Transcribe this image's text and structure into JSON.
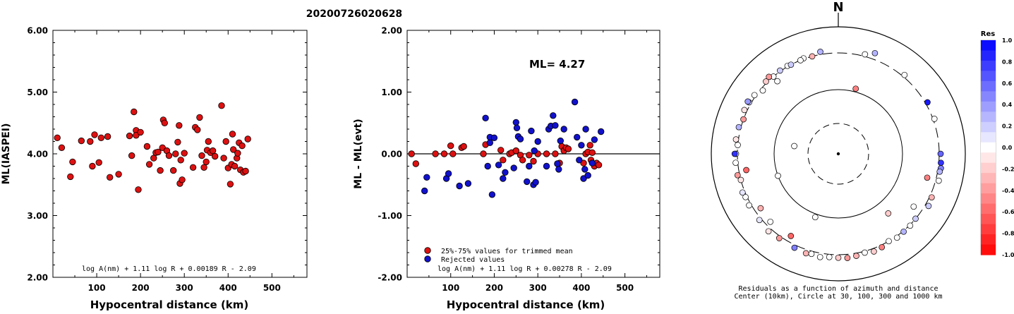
{
  "title": "20200726020628",
  "chart_data": [
    {
      "type": "scatter",
      "xlabel": "Hypocentral distance (km)",
      "ylabel": "ML(IASPEI)",
      "xlim": [
        0,
        580
      ],
      "ylim": [
        2.0,
        6.0
      ],
      "xticks": [
        "100",
        "200",
        "300",
        "400",
        "500"
      ],
      "yticks": [
        "2.00",
        "3.00",
        "4.00",
        "5.00",
        "6.00"
      ],
      "formula": "log A(nm) + 1.11 log R + 0.00189 R - 2.09",
      "point_color": "#dd1111",
      "points": [
        [
          10,
          4.26
        ],
        [
          20,
          4.1
        ],
        [
          40,
          3.63
        ],
        [
          45,
          3.87
        ],
        [
          65,
          4.21
        ],
        [
          85,
          4.2
        ],
        [
          90,
          3.8
        ],
        [
          95,
          4.31
        ],
        [
          105,
          3.86
        ],
        [
          110,
          4.26
        ],
        [
          125,
          4.28
        ],
        [
          130,
          3.62
        ],
        [
          150,
          3.67
        ],
        [
          175,
          4.29
        ],
        [
          180,
          3.97
        ],
        [
          185,
          4.68
        ],
        [
          190,
          4.38
        ],
        [
          190,
          4.3
        ],
        [
          195,
          3.42
        ],
        [
          200,
          4.35
        ],
        [
          215,
          4.12
        ],
        [
          220,
          3.83
        ],
        [
          230,
          3.93
        ],
        [
          235,
          4.02
        ],
        [
          240,
          4.03
        ],
        [
          245,
          3.73
        ],
        [
          250,
          4.1
        ],
        [
          252,
          4.55
        ],
        [
          255,
          4.5
        ],
        [
          260,
          4.05
        ],
        [
          265,
          3.97
        ],
        [
          275,
          3.73
        ],
        [
          280,
          4.0
        ],
        [
          285,
          4.19
        ],
        [
          288,
          4.46
        ],
        [
          290,
          3.52
        ],
        [
          292,
          3.9
        ],
        [
          295,
          3.58
        ],
        [
          300,
          4.01
        ],
        [
          320,
          3.78
        ],
        [
          325,
          4.43
        ],
        [
          330,
          4.39
        ],
        [
          335,
          4.59
        ],
        [
          340,
          3.97
        ],
        [
          345,
          3.78
        ],
        [
          350,
          3.87
        ],
        [
          352,
          4.06
        ],
        [
          355,
          4.2
        ],
        [
          360,
          4.02
        ],
        [
          365,
          4.05
        ],
        [
          370,
          3.96
        ],
        [
          385,
          4.78
        ],
        [
          390,
          3.93
        ],
        [
          395,
          4.2
        ],
        [
          400,
          3.77
        ],
        [
          405,
          3.51
        ],
        [
          408,
          3.83
        ],
        [
          410,
          4.32
        ],
        [
          412,
          4.07
        ],
        [
          415,
          3.8
        ],
        [
          420,
          3.93
        ],
        [
          422,
          4.01
        ],
        [
          425,
          4.18
        ],
        [
          428,
          3.74
        ],
        [
          432,
          4.13
        ],
        [
          435,
          3.7
        ],
        [
          440,
          3.72
        ],
        [
          445,
          4.24
        ]
      ]
    },
    {
      "type": "scatter",
      "xlabel": "Hypocentral distance (km)",
      "ylabel": "ML - ML(evt)",
      "xlim": [
        0,
        580
      ],
      "ylim": [
        -2.0,
        2.0
      ],
      "xticks": [
        "100",
        "200",
        "300",
        "400",
        "500"
      ],
      "yticks": [
        "-2.00",
        "-1.00",
        "0.00",
        "1.00",
        "2.00"
      ],
      "annotation": "ML= 4.27",
      "formula": "log A(nm) + 1.11 log R + 0.00278 R - 2.09",
      "reference_line": 0.0,
      "series": [
        {
          "name": "25%-75% values for trimmed mean",
          "color": "#dd1111",
          "points": [
            [
              10,
              0.0
            ],
            [
              20,
              -0.16
            ],
            [
              65,
              0.0
            ],
            [
              85,
              0.0
            ],
            [
              100,
              0.13
            ],
            [
              105,
              0.0
            ],
            [
              125,
              0.1
            ],
            [
              130,
              0.12
            ],
            [
              175,
              0.0
            ],
            [
              180,
              0.15
            ],
            [
              215,
              0.06
            ],
            [
              220,
              -0.1
            ],
            [
              235,
              0.0
            ],
            [
              240,
              0.02
            ],
            [
              250,
              0.05
            ],
            [
              260,
              -0.02
            ],
            [
              265,
              -0.1
            ],
            [
              280,
              -0.02
            ],
            [
              290,
              -0.12
            ],
            [
              300,
              0.0
            ],
            [
              320,
              0.0
            ],
            [
              340,
              0.0
            ],
            [
              350,
              -0.15
            ],
            [
              355,
              0.12
            ],
            [
              360,
              0.05
            ],
            [
              365,
              0.1
            ],
            [
              370,
              0.08
            ],
            [
              405,
              -0.15
            ],
            [
              410,
              0.0
            ],
            [
              415,
              0.03
            ],
            [
              420,
              0.14
            ],
            [
              422,
              -0.1
            ],
            [
              425,
              0.02
            ],
            [
              430,
              -0.2
            ],
            [
              435,
              -0.15
            ],
            [
              440,
              -0.18
            ]
          ]
        },
        {
          "name": "Rejected values",
          "color": "#1111cc",
          "points": [
            [
              40,
              -0.6
            ],
            [
              45,
              -0.38
            ],
            [
              90,
              -0.4
            ],
            [
              95,
              -0.32
            ],
            [
              120,
              -0.52
            ],
            [
              140,
              -0.48
            ],
            [
              180,
              0.58
            ],
            [
              185,
              -0.2
            ],
            [
              190,
              0.27
            ],
            [
              190,
              0.18
            ],
            [
              195,
              -0.66
            ],
            [
              200,
              0.26
            ],
            [
              210,
              -0.18
            ],
            [
              220,
              -0.4
            ],
            [
              225,
              -0.3
            ],
            [
              245,
              -0.23
            ],
            [
              250,
              0.51
            ],
            [
              252,
              0.42
            ],
            [
              255,
              0.28
            ],
            [
              260,
              0.24
            ],
            [
              275,
              -0.45
            ],
            [
              280,
              -0.2
            ],
            [
              285,
              0.37
            ],
            [
              290,
              -0.5
            ],
            [
              292,
              0.05
            ],
            [
              295,
              -0.46
            ],
            [
              300,
              0.2
            ],
            [
              320,
              -0.2
            ],
            [
              325,
              0.4
            ],
            [
              330,
              0.45
            ],
            [
              335,
              0.62
            ],
            [
              340,
              0.46
            ],
            [
              345,
              -0.16
            ],
            [
              348,
              -0.25
            ],
            [
              352,
              0.21
            ],
            [
              360,
              0.4
            ],
            [
              385,
              0.84
            ],
            [
              390,
              0.27
            ],
            [
              395,
              -0.1
            ],
            [
              400,
              0.14
            ],
            [
              405,
              -0.4
            ],
            [
              408,
              -0.25
            ],
            [
              410,
              0.4
            ],
            [
              415,
              -0.35
            ],
            [
              425,
              -0.15
            ],
            [
              430,
              0.23
            ],
            [
              445,
              0.36
            ]
          ]
        }
      ]
    },
    {
      "type": "polar",
      "north_label": "N",
      "caption_line1": "Residuals as a function of azimuth and distance",
      "caption_line2": "Center (10km), Circle at 30, 100, 300 and 1000 km",
      "rings_km": [
        30,
        100,
        300,
        1000
      ],
      "colorbar": {
        "title": "Res",
        "ticks": [
          "1.0",
          "0.8",
          "0.6",
          "0.4",
          "0.2",
          "0.0",
          "-0.2",
          "-0.4",
          "-0.6",
          "-0.8",
          "-1.0"
        ],
        "min": -1.0,
        "max": 1.0,
        "steps": 21
      },
      "stations": [
        [
          125,
          230,
          0.0
        ],
        [
          15,
          110,
          -0.5
        ],
        [
          140,
          150,
          -0.2
        ],
        [
          105,
          230,
          -0.5
        ],
        [
          250,
          100,
          0.0
        ],
        [
          320,
          300,
          0.0
        ],
        [
          20,
          400,
          0.3
        ],
        [
          40,
          330,
          0.0
        ],
        [
          350,
          340,
          0.3
        ],
        [
          280,
          50,
          0.0
        ],
        [
          300,
          330,
          0.2
        ],
        [
          310,
          280,
          0.0
        ],
        [
          290,
          300,
          -0.4
        ],
        [
          275,
          300,
          0.0
        ],
        [
          255,
          300,
          -0.1
        ],
        [
          245,
          320,
          0.0
        ],
        [
          240,
          330,
          0.0
        ],
        [
          230,
          330,
          0.1
        ],
        [
          222,
          350,
          -0.1
        ],
        [
          215,
          330,
          -0.4
        ],
        [
          205,
          340,
          0.5
        ],
        [
          198,
          355,
          -0.3
        ],
        [
          195,
          340,
          0.0
        ],
        [
          190,
          360,
          0.0
        ],
        [
          185,
          340,
          0.0
        ],
        [
          180,
          345,
          -0.2
        ],
        [
          175,
          355,
          -0.4
        ],
        [
          170,
          340,
          -0.3
        ],
        [
          165,
          320,
          0.0
        ],
        [
          160,
          345,
          -0.2
        ],
        [
          155,
          330,
          -0.5
        ],
        [
          150,
          300,
          0.0
        ],
        [
          145,
          320,
          0.0
        ],
        [
          140,
          310,
          0.3
        ],
        [
          135,
          310,
          0.0
        ],
        [
          130,
          300,
          0.2
        ],
        [
          60,
          330,
          0.9
        ],
        [
          70,
          320,
          0.0
        ],
        [
          90,
          320,
          0.6
        ],
        [
          95,
          330,
          0.8
        ],
        [
          98,
          340,
          0.5
        ],
        [
          100,
          330,
          0.3
        ],
        [
          105,
          345,
          0.0
        ],
        [
          115,
          330,
          -0.3
        ],
        [
          200,
          110,
          0.0
        ],
        [
          210,
          250,
          -0.6
        ],
        [
          225,
          260,
          0.0
        ],
        [
          235,
          250,
          -0.3
        ],
        [
          258,
          330,
          -0.4
        ],
        [
          270,
          320,
          0.0
        ],
        [
          285,
          330,
          0.3
        ],
        [
          295,
          340,
          -0.1
        ],
        [
          305,
          320,
          0.0
        ],
        [
          318,
          340,
          -0.4
        ],
        [
          325,
          310,
          0.2
        ],
        [
          330,
          310,
          0.0
        ],
        [
          340,
          310,
          0.0
        ],
        [
          260,
          240,
          -0.6
        ],
        [
          265,
          330,
          0.0
        ],
        [
          278,
          335,
          -0.1
        ],
        [
          248,
          335,
          0.1
        ],
        [
          300,
          355,
          0.4
        ],
        [
          315,
          320,
          -0.2
        ],
        [
          15,
          330,
          0.0
        ],
        [
          332,
          300,
          0.2
        ],
        [
          338,
          300,
          0.0
        ],
        [
          345,
          300,
          -0.3
        ],
        [
          320,
          250,
          0.0
        ],
        [
          120,
          350,
          0.2
        ],
        [
          270,
          340,
          0.8
        ]
      ]
    }
  ]
}
